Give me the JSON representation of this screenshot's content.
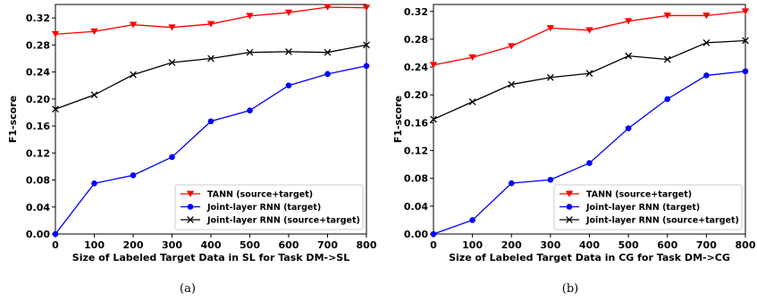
{
  "chart_data": [
    {
      "type": "line",
      "panel": "a",
      "caption": "(a)",
      "xlabel": "Size of Labeled Target Data in SL for Task DM->SL",
      "ylabel": "F1-score",
      "x": [
        0,
        100,
        200,
        300,
        400,
        500,
        600,
        700,
        800
      ],
      "xlim": [
        0,
        800
      ],
      "ylim": [
        0.0,
        0.34
      ],
      "xticks": [
        "0",
        "100",
        "200",
        "300",
        "400",
        "500",
        "600",
        "700",
        "800"
      ],
      "yticks": [
        "0.00",
        "0.04",
        "0.08",
        "0.12",
        "0.16",
        "0.20",
        "0.24",
        "0.28",
        "0.32"
      ],
      "legend_position": "lower-right",
      "series": [
        {
          "name": "TANN (source+target)",
          "color": "#ff0000",
          "marker": "triangle-down",
          "values": [
            0.296,
            0.3,
            0.31,
            0.306,
            0.311,
            0.323,
            0.328,
            0.336,
            0.335
          ]
        },
        {
          "name": "Joint-layer RNN (target)",
          "color": "#0000ff",
          "marker": "circle",
          "values": [
            0.0,
            0.075,
            0.087,
            0.114,
            0.167,
            0.183,
            0.22,
            0.237,
            0.249
          ]
        },
        {
          "name": "Joint-layer RNN (source+target)",
          "color": "#000000",
          "marker": "x",
          "values": [
            0.185,
            0.206,
            0.236,
            0.254,
            0.26,
            0.269,
            0.27,
            0.269,
            0.28
          ]
        }
      ]
    },
    {
      "type": "line",
      "panel": "b",
      "caption": "(b)",
      "xlabel": "Size of Labeled Target Data in CG for Task DM->CG",
      "ylabel": "F1-score",
      "x": [
        0,
        100,
        200,
        300,
        400,
        500,
        600,
        700,
        800
      ],
      "xlim": [
        0,
        800
      ],
      "ylim": [
        0.0,
        0.33
      ],
      "xticks": [
        "0",
        "100",
        "200",
        "300",
        "400",
        "500",
        "600",
        "700",
        "800"
      ],
      "yticks": [
        "0.00",
        "0.04",
        "0.08",
        "0.12",
        "0.16",
        "0.20",
        "0.24",
        "0.28",
        "0.32"
      ],
      "legend_position": "lower-right",
      "series": [
        {
          "name": "TANN (source+target)",
          "color": "#ff0000",
          "marker": "triangle-down",
          "values": [
            0.243,
            0.254,
            0.27,
            0.296,
            0.293,
            0.306,
            0.314,
            0.314,
            0.32
          ]
        },
        {
          "name": "Joint-layer RNN (target)",
          "color": "#0000ff",
          "marker": "circle",
          "values": [
            0.0,
            0.02,
            0.073,
            0.078,
            0.102,
            0.152,
            0.194,
            0.228,
            0.234
          ]
        },
        {
          "name": "Joint-layer RNN (source+target)",
          "color": "#000000",
          "marker": "x",
          "values": [
            0.165,
            0.19,
            0.215,
            0.225,
            0.231,
            0.256,
            0.251,
            0.275,
            0.278
          ]
        }
      ]
    }
  ]
}
